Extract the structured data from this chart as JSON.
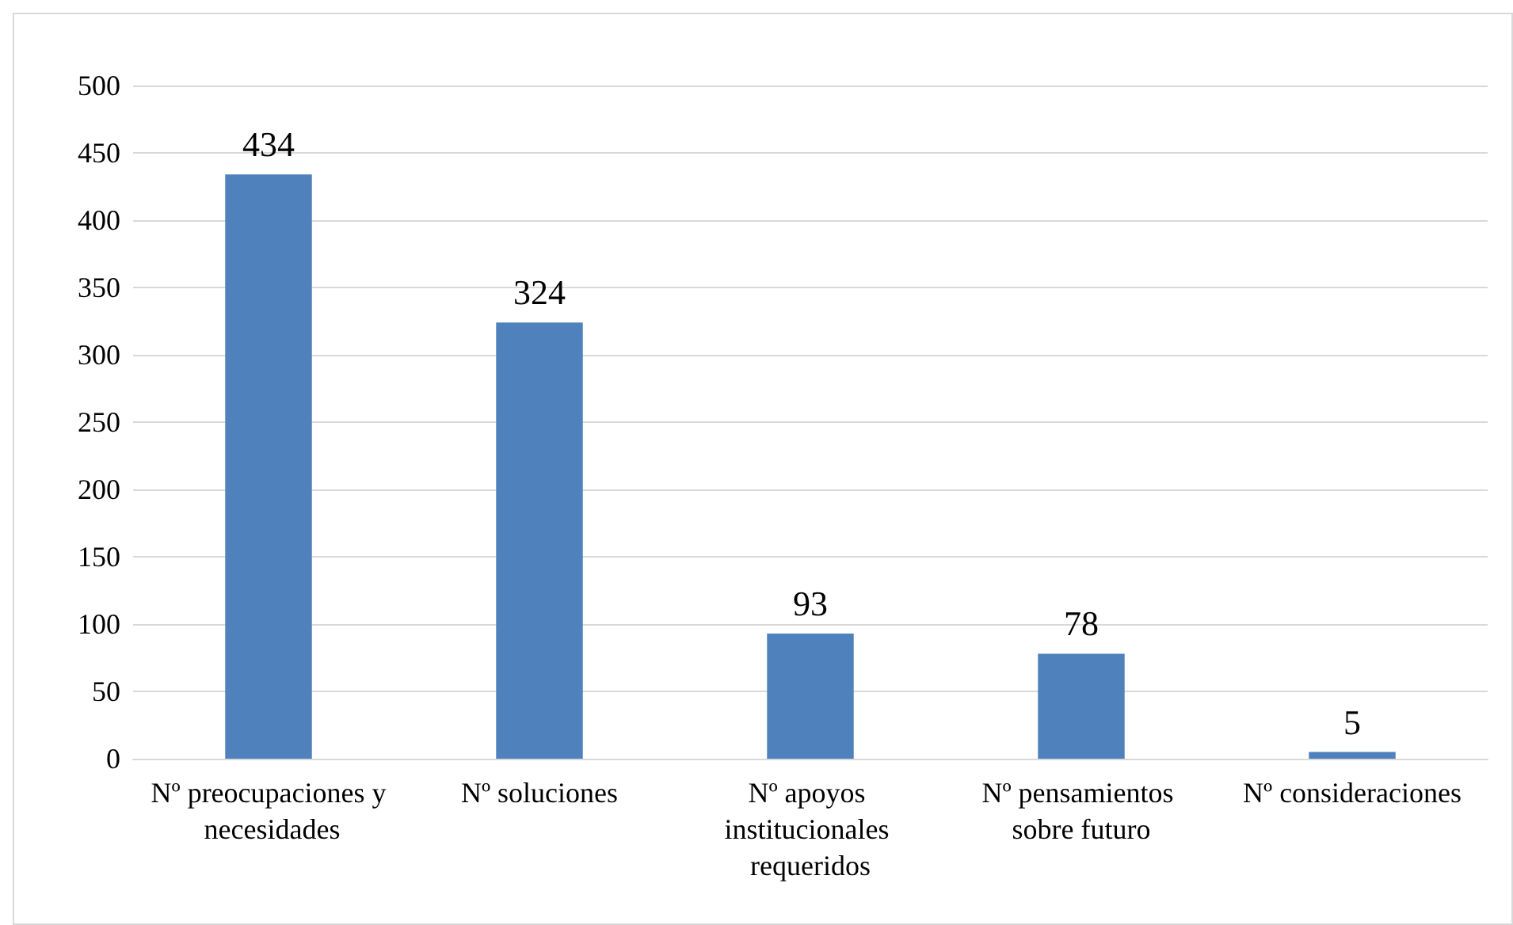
{
  "chart_data": {
    "type": "bar",
    "categories": [
      "Nº preocupaciones y necesidades",
      "Nº soluciones",
      "Nº apoyos institucionales requeridos",
      "Nº pensamientos sobre futuro",
      "Nº consideraciones"
    ],
    "values": [
      434,
      324,
      93,
      78,
      5
    ],
    "color": "#4f81bd",
    "ylim": [
      0,
      500
    ],
    "yticks": [
      0,
      50,
      100,
      150,
      200,
      250,
      300,
      350,
      400,
      450,
      500
    ],
    "grid": "y",
    "data_labels": true
  }
}
